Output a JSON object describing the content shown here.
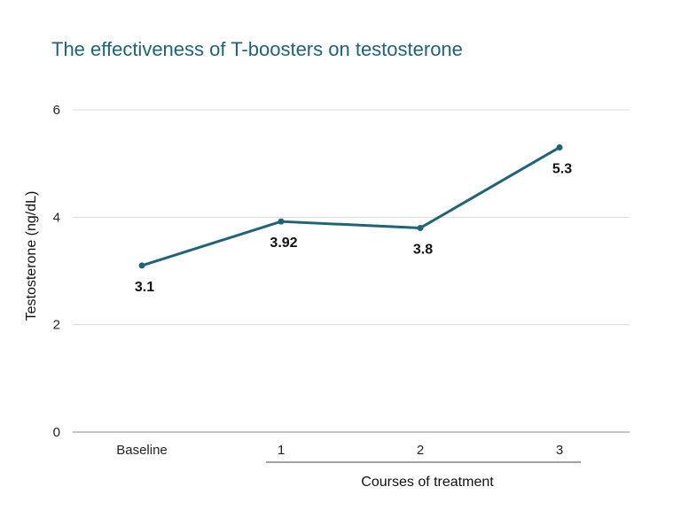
{
  "chart_data": {
    "type": "line",
    "title": "The effectiveness of T-boosters on testosterone",
    "ylabel": "Testosterone (ng/dL)",
    "group_label": "Courses of treatment",
    "categories": [
      "Baseline",
      "1",
      "2",
      "3"
    ],
    "values": [
      3.1,
      3.92,
      3.8,
      5.3
    ],
    "data_labels": [
      "3.1",
      "3.92",
      "3.8",
      "5.3"
    ],
    "y_ticks": [
      "0",
      "2",
      "4",
      "6"
    ],
    "y_tick_values": [
      0,
      2,
      4,
      6
    ],
    "ylim": [
      0,
      6
    ],
    "grid": true,
    "line_color": "#1f6378",
    "title_color": "#1f6378"
  }
}
